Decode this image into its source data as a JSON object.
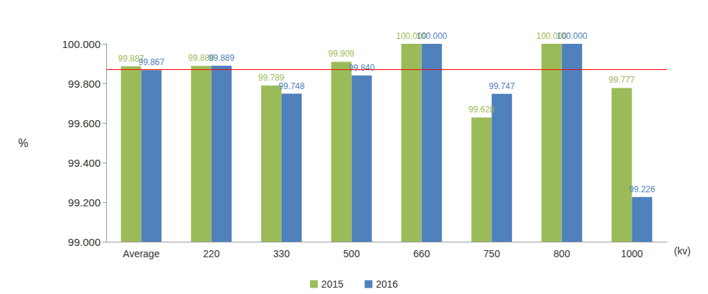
{
  "chart_data": {
    "type": "bar",
    "categories": [
      "Average",
      "220",
      "330",
      "500",
      "660",
      "750",
      "800",
      "1000"
    ],
    "x_label": "(kv)",
    "y_label": "%",
    "series": [
      {
        "name": "2015",
        "color": "#9BBB59",
        "values": [
          99.887,
          99.888,
          99.789,
          99.909,
          100,
          99.628,
          100,
          99.777
        ],
        "value_labels": [
          "99.887",
          "99.888",
          "99.789",
          "99.909",
          "100.000",
          "99.628",
          "100.000",
          "99.777"
        ]
      },
      {
        "name": "2016",
        "color": "#4F81BD",
        "values": [
          99.867,
          99.889,
          99.748,
          99.84,
          100,
          99.747,
          100,
          99.226
        ],
        "value_labels": [
          "99.867",
          "99.889",
          "99.748",
          "99.840",
          "100.000",
          "99.747",
          "100.000",
          "99.226"
        ]
      }
    ],
    "reference_line": 99.867,
    "reference_line_color": "#FF0000",
    "ylim": [
      99,
      100
    ],
    "yticks": [
      {
        "value": 99,
        "label": "99.000"
      },
      {
        "value": 99.2,
        "label": "99.200"
      },
      {
        "value": 99.4,
        "label": "99.400"
      },
      {
        "value": 99.6,
        "label": "99.600"
      },
      {
        "value": 99.8,
        "label": "99.800"
      },
      {
        "value": 100,
        "label": "100.000"
      }
    ],
    "grid": false,
    "legend": "bottom",
    "data_labels": true
  }
}
